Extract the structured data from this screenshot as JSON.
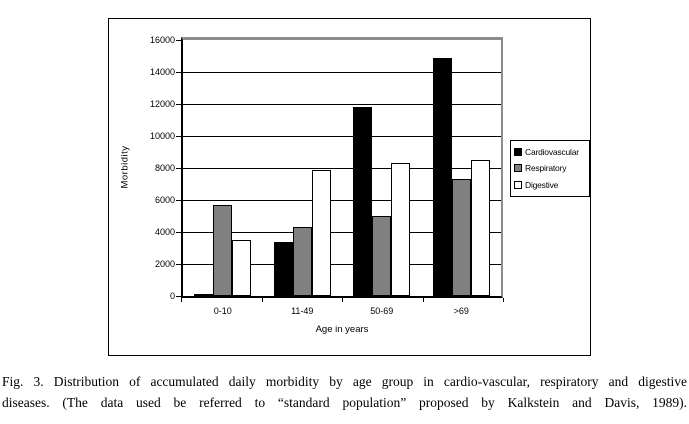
{
  "figure": {
    "caption_lines": [
      "Fig. 3. Distribution of accumulated daily morbidity by age group in cardio-vascular, respiratory and digestive",
      "diseases. (The data used be referred to “standard population” proposed by Kalkstein and Davis, 1989)."
    ]
  },
  "chart_data": {
    "type": "bar",
    "title": "",
    "categories": [
      "0-10",
      "11-49",
      "50-69",
      ">69"
    ],
    "series": [
      {
        "name": "Cardiovascular",
        "color": "#000000",
        "values": [
          100,
          3400,
          11800,
          14900
        ]
      },
      {
        "name": "Respiratory",
        "color": "#808080",
        "values": [
          5700,
          4300,
          5000,
          7300
        ]
      },
      {
        "name": "Digestive",
        "color": "#ffffff",
        "values": [
          3500,
          7900,
          8300,
          8500
        ]
      }
    ],
    "xlabel": "Age in years",
    "ylabel": "Morbidity",
    "ylim": [
      0,
      16000
    ],
    "ytick_step": 2000,
    "grid": true,
    "legend_position": "right",
    "colors": {
      "plot_border": "#8c8c8c",
      "axis": "#000000",
      "gridline": "#000000"
    }
  }
}
